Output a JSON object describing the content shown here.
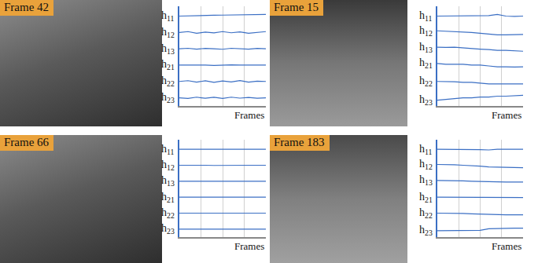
{
  "images": [
    {
      "label": "Frame 42"
    },
    {
      "label": "Frame 15"
    },
    {
      "label": "Frame 66"
    },
    {
      "label": "Frame 183"
    }
  ],
  "chart_data": [
    {
      "type": "line",
      "xlabel": "Frames",
      "color": "#3b6fc4",
      "grid": true,
      "tick_labels": false,
      "x": [
        0,
        4,
        8,
        12,
        16,
        20,
        24,
        28,
        32,
        36,
        40
      ],
      "xlim": [
        0,
        40
      ],
      "xticks": [
        10,
        20,
        30
      ],
      "ylim": [
        0.5,
        6.6
      ],
      "yticks": [],
      "series": [
        {
          "name": "h11",
          "values": [
            6.0,
            6.02,
            6.03,
            6.05,
            6.05,
            6.06,
            6.07,
            6.07,
            6.08,
            6.08,
            6.1
          ]
        },
        {
          "name": "h12",
          "values": [
            5.0,
            5.05,
            4.95,
            5.02,
            4.97,
            5.05,
            4.98,
            5.03,
            4.95,
            5.0,
            5.05
          ]
        },
        {
          "name": "h13",
          "values": [
            4.0,
            4.03,
            3.98,
            4.02,
            4.0,
            3.97,
            4.03,
            4.0,
            3.98,
            4.02,
            4.0
          ]
        },
        {
          "name": "h21",
          "values": [
            3.0,
            3.0,
            3.02,
            3.0,
            2.98,
            3.0,
            3.02,
            3.0,
            2.99,
            3.0,
            3.0
          ]
        },
        {
          "name": "h22",
          "values": [
            2.0,
            2.05,
            1.96,
            2.04,
            1.95,
            2.03,
            1.97,
            2.05,
            1.96,
            2.02,
            2.0
          ]
        },
        {
          "name": "h23",
          "values": [
            1.0,
            0.96,
            1.04,
            0.97,
            1.03,
            0.96,
            1.04,
            0.98,
            1.02,
            0.97,
            1.0
          ]
        }
      ]
    },
    {
      "type": "line",
      "xlabel": "Frames",
      "color": "#3b6fc4",
      "grid": true,
      "tick_labels": false,
      "x": [
        0,
        4,
        8,
        12,
        16,
        20,
        24,
        28,
        32,
        36,
        40
      ],
      "xlim": [
        0,
        40
      ],
      "xticks": [
        10,
        20,
        30
      ],
      "ylim": [
        0.5,
        6.6
      ],
      "yticks": [],
      "series": [
        {
          "name": "h11",
          "values": [
            6.0,
            6.0,
            6.02,
            6.0,
            6.0,
            6.0,
            6.03,
            6.1,
            6.0,
            5.98,
            6.0
          ]
        },
        {
          "name": "h12",
          "values": [
            5.1,
            5.08,
            5.05,
            5.05,
            5.0,
            4.95,
            4.9,
            4.85,
            4.85,
            4.85,
            4.88
          ]
        },
        {
          "name": "h13",
          "values": [
            4.1,
            4.08,
            4.1,
            4.05,
            4.0,
            3.98,
            3.95,
            3.9,
            3.9,
            3.88,
            3.85
          ]
        },
        {
          "name": "h21",
          "values": [
            3.1,
            3.05,
            3.05,
            3.05,
            3.0,
            3.0,
            2.95,
            2.9,
            2.9,
            2.88,
            2.9
          ]
        },
        {
          "name": "h22",
          "values": [
            2.0,
            2.0,
            1.98,
            1.95,
            1.95,
            1.9,
            1.85,
            1.85,
            1.85,
            1.85,
            1.85
          ]
        },
        {
          "name": "h23",
          "values": [
            0.85,
            0.9,
            0.95,
            1.0,
            1.0,
            1.05,
            1.05,
            1.1,
            1.1,
            1.12,
            1.15
          ]
        }
      ]
    },
    {
      "type": "line",
      "xlabel": "Frames",
      "color": "#3b6fc4",
      "grid": true,
      "tick_labels": false,
      "x": [
        0,
        4,
        8,
        12,
        16,
        20,
        24,
        28,
        32,
        36,
        40
      ],
      "xlim": [
        0,
        40
      ],
      "xticks": [
        10,
        20,
        30
      ],
      "ylim": [
        0.5,
        6.6
      ],
      "yticks": [],
      "series": [
        {
          "name": "h11",
          "values": [
            6.0,
            6.0,
            6.01,
            6.0,
            6.0,
            6.0,
            6.01,
            6.0,
            6.0,
            6.0,
            6.0
          ]
        },
        {
          "name": "h12",
          "values": [
            5.0,
            5.01,
            5.0,
            5.0,
            4.99,
            5.0,
            5.0,
            5.01,
            5.0,
            5.0,
            5.0
          ]
        },
        {
          "name": "h13",
          "values": [
            4.0,
            4.0,
            4.0,
            4.01,
            4.0,
            4.0,
            4.0,
            4.0,
            3.99,
            4.0,
            4.0
          ]
        },
        {
          "name": "h21",
          "values": [
            3.0,
            3.0,
            3.0,
            3.0,
            3.0,
            3.01,
            3.0,
            3.0,
            3.0,
            3.0,
            3.0
          ]
        },
        {
          "name": "h22",
          "values": [
            2.0,
            2.01,
            2.0,
            2.0,
            2.0,
            2.0,
            1.99,
            2.0,
            2.0,
            2.0,
            2.0
          ]
        },
        {
          "name": "h23",
          "values": [
            1.0,
            1.0,
            1.0,
            1.0,
            1.01,
            1.0,
            1.0,
            1.0,
            1.0,
            1.0,
            1.0
          ]
        }
      ]
    },
    {
      "type": "line",
      "xlabel": "Frames",
      "color": "#3b6fc4",
      "grid": true,
      "tick_labels": false,
      "x": [
        0,
        4,
        8,
        12,
        16,
        20,
        24,
        28,
        32,
        36,
        40
      ],
      "xlim": [
        0,
        40
      ],
      "xticks": [
        10,
        20,
        30
      ],
      "ylim": [
        0.5,
        6.6
      ],
      "yticks": [],
      "series": [
        {
          "name": "h11",
          "values": [
            6.0,
            6.0,
            6.0,
            6.0,
            6.0,
            5.98,
            5.96,
            6.0,
            6.0,
            6.0,
            6.0
          ]
        },
        {
          "name": "h12",
          "values": [
            5.05,
            5.05,
            5.03,
            5.0,
            4.98,
            4.95,
            4.9,
            4.88,
            4.86,
            4.85,
            4.85
          ]
        },
        {
          "name": "h13",
          "values": [
            4.05,
            4.05,
            4.03,
            4.02,
            4.0,
            3.98,
            3.96,
            3.95,
            3.95,
            3.95,
            3.95
          ]
        },
        {
          "name": "h21",
          "values": [
            3.0,
            3.0,
            3.0,
            3.0,
            3.0,
            3.0,
            3.0,
            2.98,
            2.98,
            2.98,
            2.98
          ]
        },
        {
          "name": "h22",
          "values": [
            2.0,
            2.0,
            2.0,
            1.98,
            1.96,
            1.94,
            1.92,
            1.9,
            1.9,
            1.9,
            1.9
          ]
        },
        {
          "name": "h23",
          "values": [
            0.9,
            0.9,
            0.9,
            0.9,
            0.9,
            0.92,
            1.02,
            1.05,
            1.05,
            1.06,
            1.06
          ]
        }
      ]
    }
  ]
}
